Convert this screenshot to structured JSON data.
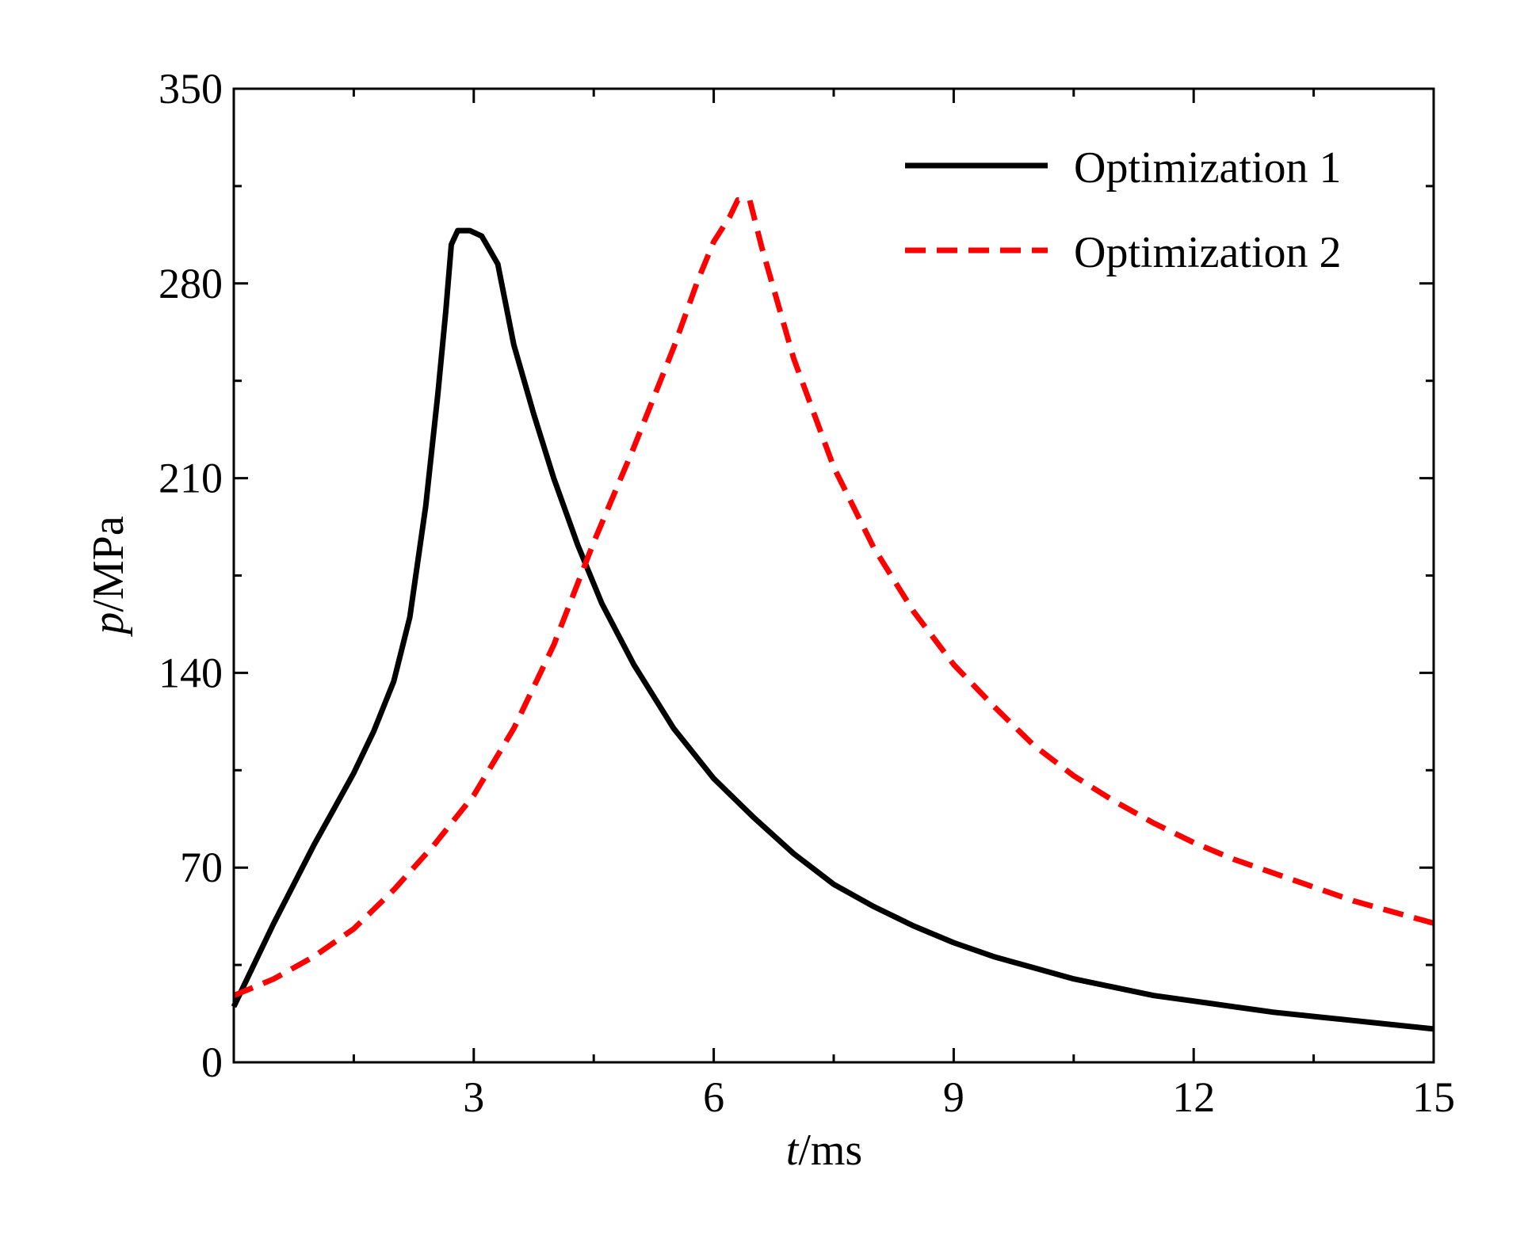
{
  "chart_data": {
    "type": "line",
    "title": "",
    "xlabel": {
      "italic": "t",
      "unit": "/ms"
    },
    "ylabel": {
      "italic": "p",
      "unit": "/MPa"
    },
    "xlim": [
      0,
      15
    ],
    "ylim": [
      0,
      350
    ],
    "x_ticks": [
      3,
      6,
      9,
      12,
      15
    ],
    "x_minor_ticks": [
      1.5,
      4.5,
      7.5,
      10.5,
      13.5
    ],
    "y_ticks": [
      0,
      70,
      140,
      210,
      280,
      350
    ],
    "y_minor_ticks": [
      35,
      105,
      175,
      245,
      315
    ],
    "grid": false,
    "legend_position": "top-right",
    "series": [
      {
        "name": "Optimization 1",
        "color": "#000000",
        "style": "solid",
        "points": [
          [
            0,
            20
          ],
          [
            0.25,
            35
          ],
          [
            0.5,
            50
          ],
          [
            0.75,
            64
          ],
          [
            1.0,
            78
          ],
          [
            1.25,
            91
          ],
          [
            1.5,
            104
          ],
          [
            1.75,
            119
          ],
          [
            2.0,
            137
          ],
          [
            2.2,
            160
          ],
          [
            2.4,
            200
          ],
          [
            2.55,
            240
          ],
          [
            2.65,
            270
          ],
          [
            2.72,
            294
          ],
          [
            2.8,
            299
          ],
          [
            2.95,
            299
          ],
          [
            3.1,
            297
          ],
          [
            3.3,
            287
          ],
          [
            3.5,
            258
          ],
          [
            3.75,
            233
          ],
          [
            4.0,
            210
          ],
          [
            4.3,
            186
          ],
          [
            4.6,
            165
          ],
          [
            5.0,
            143
          ],
          [
            5.5,
            120
          ],
          [
            6.0,
            102
          ],
          [
            6.5,
            88
          ],
          [
            7.0,
            75
          ],
          [
            7.5,
            64
          ],
          [
            8.0,
            56
          ],
          [
            8.5,
            49
          ],
          [
            9.0,
            43
          ],
          [
            9.5,
            38
          ],
          [
            10.0,
            34
          ],
          [
            10.5,
            30
          ],
          [
            11.0,
            27
          ],
          [
            11.5,
            24
          ],
          [
            12.0,
            22
          ],
          [
            12.5,
            20
          ],
          [
            13.0,
            18
          ],
          [
            13.5,
            16.5
          ],
          [
            14.0,
            15
          ],
          [
            14.5,
            13.5
          ],
          [
            15.0,
            12
          ]
        ]
      },
      {
        "name": "Optimization 2",
        "color": "#ff0000",
        "style": "dashed",
        "points": [
          [
            0,
            24
          ],
          [
            0.5,
            30
          ],
          [
            1.0,
            38
          ],
          [
            1.5,
            48
          ],
          [
            2.0,
            62
          ],
          [
            2.5,
            78
          ],
          [
            3.0,
            96
          ],
          [
            3.5,
            120
          ],
          [
            4.0,
            150
          ],
          [
            4.5,
            187
          ],
          [
            5.0,
            221
          ],
          [
            5.5,
            257
          ],
          [
            5.8,
            281
          ],
          [
            6.0,
            295
          ],
          [
            6.2,
            304
          ],
          [
            6.3,
            310
          ],
          [
            6.45,
            310
          ],
          [
            6.6,
            293
          ],
          [
            7.0,
            253
          ],
          [
            7.5,
            214
          ],
          [
            8.0,
            185
          ],
          [
            8.5,
            162
          ],
          [
            9.0,
            143
          ],
          [
            9.5,
            128
          ],
          [
            10.0,
            114
          ],
          [
            10.5,
            103
          ],
          [
            11.0,
            94
          ],
          [
            11.5,
            86
          ],
          [
            12.0,
            79
          ],
          [
            12.5,
            73
          ],
          [
            13.0,
            68
          ],
          [
            13.5,
            63
          ],
          [
            14.0,
            58
          ],
          [
            14.5,
            54
          ],
          [
            15.0,
            50
          ]
        ]
      }
    ]
  }
}
